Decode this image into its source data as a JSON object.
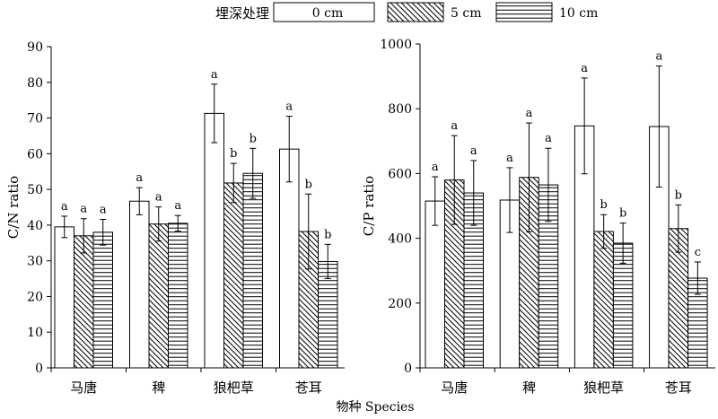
{
  "legend": {
    "title": "埋深处理",
    "items": [
      {
        "label": "0 cm",
        "pattern": "none"
      },
      {
        "label": "5 cm",
        "pattern": "diagonal"
      },
      {
        "label": "10 cm",
        "pattern": "horizontal"
      }
    ]
  },
  "xlabel_common": "物种 Species",
  "chart_data": [
    {
      "type": "bar",
      "ylabel": "C/N ratio",
      "ylim": [
        0,
        90
      ],
      "yticks": [
        0,
        10,
        20,
        30,
        40,
        50,
        60,
        70,
        80,
        90
      ],
      "categories": [
        "马唐",
        "稗",
        "狼杷草",
        "苍耳"
      ],
      "series": [
        {
          "name": "0 cm",
          "values": [
            39.5,
            46.7,
            71.3,
            61.3
          ],
          "errors": [
            3.0,
            3.8,
            8.2,
            9.2
          ],
          "labels": [
            "a",
            "a",
            "a",
            "a"
          ]
        },
        {
          "name": "5 cm",
          "values": [
            37.0,
            40.3,
            51.8,
            38.2
          ],
          "errors": [
            4.8,
            4.8,
            5.5,
            10.5
          ],
          "labels": [
            "a",
            "a",
            "b",
            "b"
          ]
        },
        {
          "name": "10 cm",
          "values": [
            38.0,
            40.5,
            54.5,
            29.8
          ],
          "errors": [
            3.6,
            2.2,
            7.0,
            4.8
          ],
          "labels": [
            "a",
            "a",
            "b",
            "b"
          ]
        }
      ]
    },
    {
      "type": "bar",
      "ylabel": "C/P ratio",
      "ylim": [
        0,
        1000
      ],
      "yticks": [
        0,
        200,
        400,
        600,
        800,
        1000
      ],
      "categories": [
        "马唐",
        "稗",
        "狼杷草",
        "苍耳"
      ],
      "series": [
        {
          "name": "0 cm",
          "values": [
            515,
            518,
            747,
            745
          ],
          "errors": [
            75,
            100,
            148,
            187
          ],
          "labels": [
            "a",
            "a",
            "a",
            "a"
          ]
        },
        {
          "name": "5 cm",
          "values": [
            580,
            588,
            421,
            430
          ],
          "errors": [
            137,
            168,
            52,
            73
          ],
          "labels": [
            "a",
            "a",
            "b",
            "b"
          ]
        },
        {
          "name": "10 cm",
          "values": [
            540,
            565,
            385,
            277
          ],
          "errors": [
            100,
            113,
            62,
            50
          ],
          "labels": [
            "a",
            "a",
            "b",
            "c"
          ]
        }
      ]
    }
  ]
}
